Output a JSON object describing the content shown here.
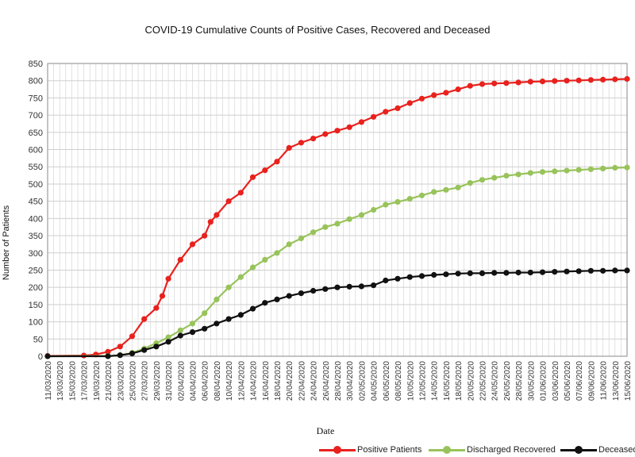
{
  "chart_data": {
    "type": "line",
    "title": "COVID-19 Cumulative Counts of Positive Cases, Recovered and Deceased",
    "xlabel": "Date",
    "ylabel": "Number of Patients",
    "ylim": [
      0,
      850
    ],
    "yticks": [
      0,
      50,
      100,
      150,
      200,
      250,
      300,
      350,
      400,
      450,
      500,
      550,
      600,
      650,
      700,
      750,
      800,
      850
    ],
    "grid": true,
    "legend_position": "bottom",
    "x_start": "11/03/2020",
    "x_end": "15/06/2020",
    "x_tick_labels": [
      "11/03/2020",
      "13/03/2020",
      "15/03/2020",
      "17/03/2020",
      "19/03/2020",
      "21/03/2020",
      "23/03/2020",
      "25/03/2020",
      "27/03/2020",
      "29/03/2020",
      "31/03/2020",
      "02/04/2020",
      "04/04/2020",
      "06/04/2020",
      "08/04/2020",
      "10/04/2020",
      "12/04/2020",
      "14/04/2020",
      "16/04/2020",
      "18/04/2020",
      "20/04/2020",
      "22/04/2020",
      "24/04/2020",
      "26/04/2020",
      "28/04/2020",
      "30/04/2020",
      "02/05/2020",
      "04/05/2020",
      "06/05/2020",
      "08/05/2020",
      "10/05/2020",
      "12/05/2020",
      "14/05/2020",
      "16/05/2020",
      "18/05/2020",
      "20/05/2020",
      "22/05/2020",
      "24/05/2020",
      "26/05/2020",
      "28/05/2020",
      "30/05/2020",
      "01/06/2020",
      "03/06/2020",
      "05/06/2020",
      "07/06/2020",
      "09/06/2020",
      "11/06/2020",
      "13/06/2020",
      "15/06/2020"
    ],
    "series": [
      {
        "name": "Positive Patients",
        "color": "#e8211d",
        "points": [
          [
            "11/03/2020",
            1
          ],
          [
            "17/03/2020",
            2
          ],
          [
            "19/03/2020",
            5
          ],
          [
            "21/03/2020",
            13
          ],
          [
            "23/03/2020",
            28
          ],
          [
            "25/03/2020",
            58
          ],
          [
            "27/03/2020",
            108
          ],
          [
            "29/03/2020",
            140
          ],
          [
            "30/03/2020",
            175
          ],
          [
            "31/03/2020",
            225
          ],
          [
            "02/04/2020",
            280
          ],
          [
            "04/04/2020",
            325
          ],
          [
            "06/04/2020",
            350
          ],
          [
            "07/04/2020",
            390
          ],
          [
            "08/04/2020",
            410
          ],
          [
            "10/04/2020",
            450
          ],
          [
            "12/04/2020",
            475
          ],
          [
            "14/04/2020",
            520
          ],
          [
            "16/04/2020",
            540
          ],
          [
            "18/04/2020",
            565
          ],
          [
            "20/04/2020",
            605
          ],
          [
            "22/04/2020",
            620
          ],
          [
            "24/04/2020",
            632
          ],
          [
            "26/04/2020",
            645
          ],
          [
            "28/04/2020",
            655
          ],
          [
            "30/04/2020",
            665
          ],
          [
            "02/05/2020",
            680
          ],
          [
            "04/05/2020",
            695
          ],
          [
            "06/05/2020",
            710
          ],
          [
            "08/05/2020",
            720
          ],
          [
            "10/05/2020",
            735
          ],
          [
            "12/05/2020",
            748
          ],
          [
            "14/05/2020",
            758
          ],
          [
            "16/05/2020",
            765
          ],
          [
            "18/05/2020",
            775
          ],
          [
            "20/05/2020",
            785
          ],
          [
            "22/05/2020",
            790
          ],
          [
            "24/05/2020",
            792
          ],
          [
            "26/05/2020",
            793
          ],
          [
            "28/05/2020",
            795
          ],
          [
            "30/05/2020",
            797
          ],
          [
            "01/06/2020",
            798
          ],
          [
            "03/06/2020",
            799
          ],
          [
            "05/06/2020",
            800
          ],
          [
            "07/06/2020",
            801
          ],
          [
            "09/06/2020",
            802
          ],
          [
            "11/06/2020",
            803
          ],
          [
            "13/06/2020",
            804
          ],
          [
            "15/06/2020",
            805
          ]
        ]
      },
      {
        "name": "Discharged Recovered",
        "color": "#98c35b",
        "points": [
          [
            "11/03/2020",
            0
          ],
          [
            "21/03/2020",
            1
          ],
          [
            "23/03/2020",
            3
          ],
          [
            "25/03/2020",
            10
          ],
          [
            "27/03/2020",
            22
          ],
          [
            "29/03/2020",
            38
          ],
          [
            "31/03/2020",
            55
          ],
          [
            "02/04/2020",
            75
          ],
          [
            "04/04/2020",
            95
          ],
          [
            "06/04/2020",
            125
          ],
          [
            "08/04/2020",
            165
          ],
          [
            "10/04/2020",
            200
          ],
          [
            "12/04/2020",
            230
          ],
          [
            "14/04/2020",
            258
          ],
          [
            "16/04/2020",
            280
          ],
          [
            "18/04/2020",
            300
          ],
          [
            "20/04/2020",
            325
          ],
          [
            "22/04/2020",
            342
          ],
          [
            "24/04/2020",
            360
          ],
          [
            "26/04/2020",
            375
          ],
          [
            "28/04/2020",
            385
          ],
          [
            "30/04/2020",
            398
          ],
          [
            "02/05/2020",
            410
          ],
          [
            "04/05/2020",
            425
          ],
          [
            "06/05/2020",
            440
          ],
          [
            "08/05/2020",
            448
          ],
          [
            "10/05/2020",
            457
          ],
          [
            "12/05/2020",
            467
          ],
          [
            "14/05/2020",
            477
          ],
          [
            "16/05/2020",
            483
          ],
          [
            "18/05/2020",
            490
          ],
          [
            "20/05/2020",
            503
          ],
          [
            "22/05/2020",
            512
          ],
          [
            "24/05/2020",
            518
          ],
          [
            "26/05/2020",
            524
          ],
          [
            "28/05/2020",
            528
          ],
          [
            "30/05/2020",
            532
          ],
          [
            "01/06/2020",
            535
          ],
          [
            "03/06/2020",
            537
          ],
          [
            "05/06/2020",
            539
          ],
          [
            "07/06/2020",
            541
          ],
          [
            "09/06/2020",
            543
          ],
          [
            "11/06/2020",
            545
          ],
          [
            "13/06/2020",
            547
          ],
          [
            "15/06/2020",
            548
          ]
        ]
      },
      {
        "name": "Deceased",
        "color": "#111111",
        "points": [
          [
            "11/03/2020",
            0
          ],
          [
            "21/03/2020",
            0
          ],
          [
            "23/03/2020",
            3
          ],
          [
            "25/03/2020",
            8
          ],
          [
            "27/03/2020",
            18
          ],
          [
            "29/03/2020",
            28
          ],
          [
            "31/03/2020",
            42
          ],
          [
            "02/04/2020",
            60
          ],
          [
            "04/04/2020",
            70
          ],
          [
            "06/04/2020",
            80
          ],
          [
            "08/04/2020",
            95
          ],
          [
            "10/04/2020",
            108
          ],
          [
            "12/04/2020",
            120
          ],
          [
            "14/04/2020",
            138
          ],
          [
            "16/04/2020",
            155
          ],
          [
            "18/04/2020",
            165
          ],
          [
            "20/04/2020",
            175
          ],
          [
            "22/04/2020",
            183
          ],
          [
            "24/04/2020",
            190
          ],
          [
            "26/04/2020",
            195
          ],
          [
            "28/04/2020",
            200
          ],
          [
            "30/04/2020",
            202
          ],
          [
            "02/05/2020",
            203
          ],
          [
            "04/05/2020",
            206
          ],
          [
            "06/05/2020",
            220
          ],
          [
            "08/05/2020",
            225
          ],
          [
            "10/05/2020",
            230
          ],
          [
            "12/05/2020",
            233
          ],
          [
            "14/05/2020",
            236
          ],
          [
            "16/05/2020",
            238
          ],
          [
            "18/05/2020",
            240
          ],
          [
            "20/05/2020",
            241
          ],
          [
            "22/05/2020",
            241
          ],
          [
            "24/05/2020",
            242
          ],
          [
            "26/05/2020",
            242
          ],
          [
            "28/05/2020",
            243
          ],
          [
            "30/05/2020",
            243
          ],
          [
            "01/06/2020",
            244
          ],
          [
            "03/06/2020",
            245
          ],
          [
            "05/06/2020",
            246
          ],
          [
            "07/06/2020",
            247
          ],
          [
            "09/06/2020",
            248
          ],
          [
            "11/06/2020",
            248
          ],
          [
            "13/06/2020",
            249
          ],
          [
            "15/06/2020",
            249
          ]
        ]
      }
    ]
  }
}
